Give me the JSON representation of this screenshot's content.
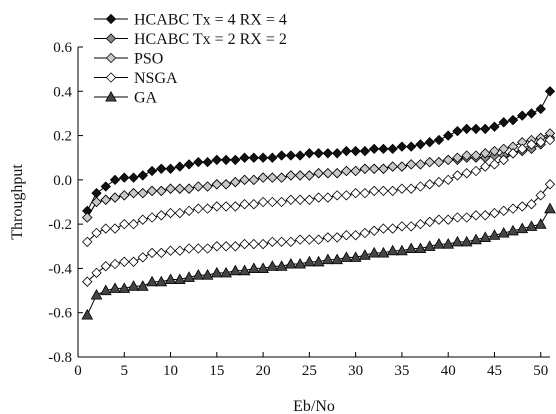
{
  "chart_data": {
    "type": "line",
    "title": "",
    "xlabel": "Eb/No",
    "ylabel": "Throughput",
    "xlim": [
      0,
      51
    ],
    "ylim": [
      -0.8,
      0.6
    ],
    "xticks": [
      0,
      5,
      10,
      15,
      20,
      25,
      30,
      35,
      40,
      45,
      50
    ],
    "yticks": [
      -0.8,
      -0.6,
      -0.4,
      -0.2,
      0.0,
      0.2,
      0.4,
      0.6
    ],
    "ytick_labels": [
      "-0.8",
      "-0.6",
      "-0.4",
      "-0.2",
      "0.0",
      "0.2",
      "0.4",
      "0.6"
    ],
    "grid": false,
    "legend_position": "top-left",
    "x": [
      1,
      2,
      3,
      4,
      5,
      6,
      7,
      8,
      9,
      10,
      11,
      12,
      13,
      14,
      15,
      16,
      17,
      18,
      19,
      20,
      21,
      22,
      23,
      24,
      25,
      26,
      27,
      28,
      29,
      30,
      31,
      32,
      33,
      34,
      35,
      36,
      37,
      38,
      39,
      40,
      41,
      42,
      43,
      44,
      45,
      46,
      47,
      48,
      49,
      50,
      51
    ],
    "series": [
      {
        "name": "HCABC Tx = 4 RX = 4",
        "marker": "diamond",
        "fill": "#111111",
        "values": [
          -0.14,
          -0.06,
          -0.03,
          0.0,
          0.01,
          0.01,
          0.02,
          0.04,
          0.05,
          0.05,
          0.06,
          0.07,
          0.08,
          0.08,
          0.09,
          0.09,
          0.09,
          0.1,
          0.1,
          0.1,
          0.1,
          0.11,
          0.11,
          0.11,
          0.12,
          0.12,
          0.12,
          0.12,
          0.13,
          0.13,
          0.13,
          0.14,
          0.14,
          0.14,
          0.15,
          0.15,
          0.16,
          0.17,
          0.18,
          0.2,
          0.22,
          0.23,
          0.23,
          0.23,
          0.24,
          0.26,
          0.27,
          0.29,
          0.3,
          0.32,
          0.4
        ]
      },
      {
        "name": "HCABC Tx = 2 RX = 2",
        "marker": "diamond",
        "fill": "#8a8a8a",
        "values": [
          -0.17,
          -0.1,
          -0.09,
          -0.08,
          -0.07,
          -0.06,
          -0.06,
          -0.05,
          -0.05,
          -0.04,
          -0.04,
          -0.04,
          -0.03,
          -0.03,
          -0.02,
          -0.02,
          -0.01,
          0.0,
          0.0,
          0.01,
          0.01,
          0.01,
          0.02,
          0.02,
          0.02,
          0.03,
          0.03,
          0.03,
          0.04,
          0.04,
          0.05,
          0.05,
          0.05,
          0.06,
          0.06,
          0.07,
          0.07,
          0.08,
          0.08,
          0.09,
          0.09,
          0.1,
          0.1,
          0.1,
          0.11,
          0.11,
          0.12,
          0.13,
          0.14,
          0.16,
          0.19
        ]
      },
      {
        "name": "PSO",
        "marker": "diamond",
        "fill": "#c8c8c8",
        "values": [
          -0.17,
          -0.1,
          -0.09,
          -0.08,
          -0.07,
          -0.06,
          -0.06,
          -0.05,
          -0.05,
          -0.04,
          -0.04,
          -0.04,
          -0.03,
          -0.03,
          -0.02,
          -0.02,
          -0.01,
          0.0,
          0.0,
          0.01,
          0.01,
          0.01,
          0.02,
          0.02,
          0.02,
          0.03,
          0.03,
          0.03,
          0.04,
          0.04,
          0.05,
          0.05,
          0.05,
          0.06,
          0.06,
          0.07,
          0.07,
          0.08,
          0.08,
          0.09,
          0.1,
          0.11,
          0.11,
          0.12,
          0.13,
          0.14,
          0.15,
          0.17,
          0.18,
          0.19,
          0.21
        ]
      },
      {
        "name": "NSGA",
        "marker": "diamond",
        "fill": "#ffffff",
        "values": [
          -0.28,
          -0.24,
          -0.22,
          -0.22,
          -0.2,
          -0.2,
          -0.18,
          -0.17,
          -0.16,
          -0.15,
          -0.15,
          -0.14,
          -0.13,
          -0.13,
          -0.12,
          -0.12,
          -0.12,
          -0.11,
          -0.11,
          -0.1,
          -0.1,
          -0.1,
          -0.09,
          -0.09,
          -0.09,
          -0.08,
          -0.08,
          -0.07,
          -0.07,
          -0.06,
          -0.06,
          -0.05,
          -0.05,
          -0.05,
          -0.04,
          -0.04,
          -0.03,
          -0.02,
          -0.01,
          0.0,
          0.02,
          0.03,
          0.04,
          0.06,
          0.07,
          0.09,
          0.12,
          0.14,
          0.16,
          0.17,
          0.18
        ]
      },
      {
        "name": "",
        "marker": "diamond",
        "fill": "#ffffff",
        "values": [
          -0.46,
          -0.42,
          -0.39,
          -0.38,
          -0.37,
          -0.37,
          -0.35,
          -0.33,
          -0.33,
          -0.32,
          -0.32,
          -0.31,
          -0.31,
          -0.31,
          -0.3,
          -0.3,
          -0.3,
          -0.29,
          -0.29,
          -0.29,
          -0.28,
          -0.28,
          -0.28,
          -0.27,
          -0.27,
          -0.27,
          -0.26,
          -0.26,
          -0.25,
          -0.25,
          -0.24,
          -0.23,
          -0.22,
          -0.22,
          -0.21,
          -0.21,
          -0.2,
          -0.19,
          -0.18,
          -0.18,
          -0.17,
          -0.17,
          -0.16,
          -0.16,
          -0.15,
          -0.14,
          -0.13,
          -0.12,
          -0.11,
          -0.07,
          -0.02
        ]
      },
      {
        "name": "GA",
        "marker": "triangle",
        "fill": "#444444",
        "values": [
          -0.61,
          -0.52,
          -0.5,
          -0.49,
          -0.49,
          -0.48,
          -0.48,
          -0.46,
          -0.46,
          -0.45,
          -0.45,
          -0.44,
          -0.43,
          -0.43,
          -0.42,
          -0.42,
          -0.41,
          -0.41,
          -0.4,
          -0.4,
          -0.39,
          -0.39,
          -0.38,
          -0.38,
          -0.37,
          -0.37,
          -0.36,
          -0.36,
          -0.35,
          -0.35,
          -0.34,
          -0.33,
          -0.33,
          -0.32,
          -0.32,
          -0.31,
          -0.31,
          -0.3,
          -0.29,
          -0.29,
          -0.28,
          -0.28,
          -0.27,
          -0.26,
          -0.25,
          -0.24,
          -0.23,
          -0.22,
          -0.21,
          -0.2,
          -0.13
        ]
      }
    ]
  }
}
